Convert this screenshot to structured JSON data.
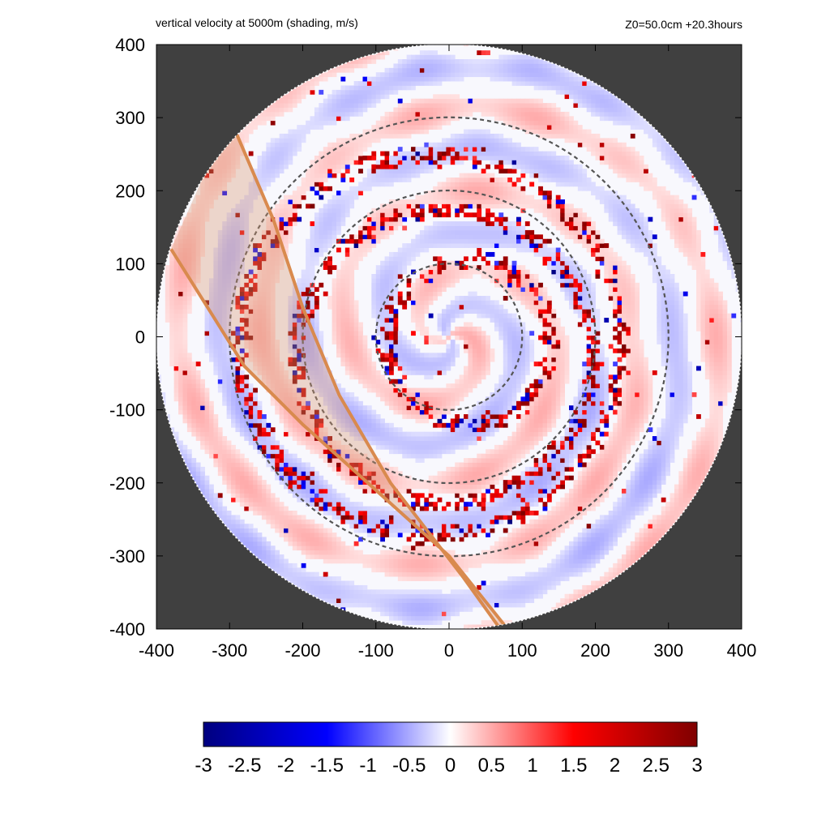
{
  "header": {
    "left_title": "vertical velocity at 5000m (shading, m/s)",
    "right_title": "Z0=50.0cm  +20.3hours"
  },
  "chart_data": {
    "type": "heatmap",
    "title": "vertical velocity at 5000m (shading, m/s)",
    "annotation": "Z0=50.0cm  +20.3hours",
    "xlim": [
      -400,
      400
    ],
    "ylim": [
      -400,
      400
    ],
    "xticks": [
      -400,
      -300,
      -200,
      -100,
      0,
      100,
      200,
      300,
      400
    ],
    "yticks": [
      -400,
      -300,
      -200,
      -100,
      0,
      100,
      200,
      300,
      400
    ],
    "xtick_labels": [
      "-400",
      "-300",
      "-200",
      "-100",
      "0",
      "100",
      "200",
      "300",
      "400"
    ],
    "ytick_labels": [
      "400",
      "300",
      "200",
      "100",
      "0",
      "-100",
      "-200",
      "-300",
      "-400"
    ],
    "grid": false,
    "domain_radius": 400,
    "outside_domain_color": "#404040",
    "range_circles": [
      100,
      200,
      300
    ],
    "shading": {
      "variable": "vertical velocity",
      "units": "m/s",
      "colormap": [
        "#00007f",
        "#0000ff",
        "#ffffff",
        "#ff0000",
        "#7f0000"
      ],
      "vmin": -3,
      "vmax": 3,
      "pattern": "spiral rainbands with strong updraft cells (up to ~3 m/s) and weaker downdrafts",
      "rainband_radii_km": [
        110,
        200,
        260
      ],
      "eye_center": [
        0,
        0
      ]
    },
    "highlight_band": {
      "color": "#d98a4e",
      "fill": "rgba(215,150,110,0.35)",
      "edge1": [
        [
          -300,
          300
        ],
        [
          -240,
          160
        ],
        [
          -200,
          40
        ],
        [
          -150,
          -80
        ],
        [
          -80,
          -200
        ],
        [
          20,
          -330
        ],
        [
          70,
          -400
        ]
      ],
      "edge2": [
        [
          -380,
          120
        ],
        [
          -330,
          40
        ],
        [
          -280,
          -40
        ],
        [
          -200,
          -120
        ],
        [
          -100,
          -210
        ],
        [
          0,
          -300
        ],
        [
          80,
          -400
        ]
      ]
    },
    "colorbar": {
      "ticks": [
        -3,
        -2.5,
        -2,
        -1.5,
        -1,
        -0.5,
        0,
        0.5,
        1,
        1.5,
        2,
        2.5,
        3
      ],
      "tick_labels": [
        "-3",
        "-2.5",
        "-2",
        "-1.5",
        "-1",
        "-0.5",
        "0",
        "0.5",
        "1",
        "1.5",
        "2",
        "2.5",
        "3"
      ]
    }
  }
}
